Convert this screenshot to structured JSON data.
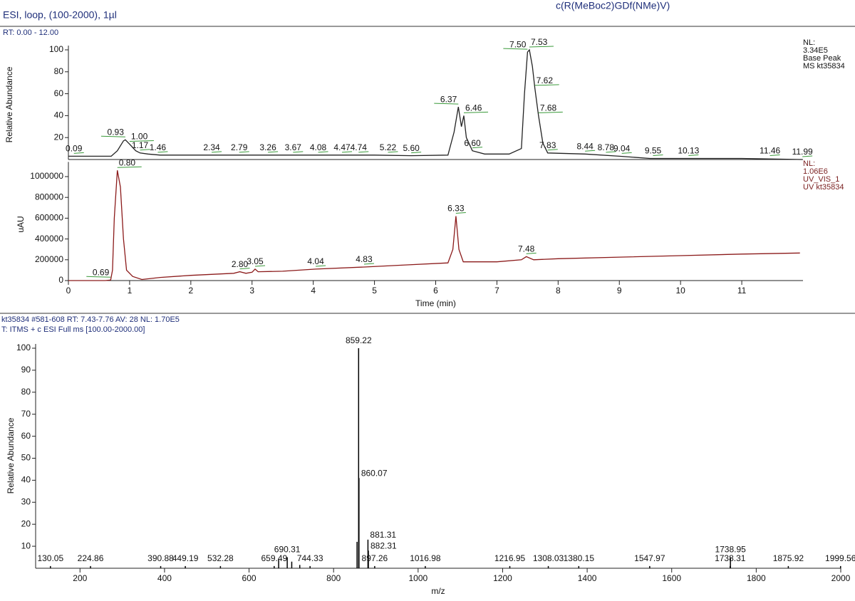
{
  "header": {
    "method": "ESI, loop, (100-2000), 1µl",
    "compound": "c(R(MeBoc2)GDf(NMe)V)",
    "rt_range": "RT: 0.00 - 12.00"
  },
  "chart_data": [
    {
      "type": "line",
      "ylabel": "Relative Abundance",
      "color": "#222222",
      "xlim": [
        0,
        12
      ],
      "ylim": [
        0,
        100
      ],
      "yticks": [
        20,
        40,
        60,
        80,
        100
      ],
      "info": [
        "NL:",
        "3.34E5",
        "Base Peak",
        "MS kt35834"
      ],
      "x": [
        0,
        0.7,
        0.8,
        0.9,
        0.93,
        1.0,
        1.1,
        1.17,
        1.3,
        1.5,
        2,
        3,
        4,
        5,
        5.6,
        6.2,
        6.3,
        6.37,
        6.42,
        6.46,
        6.5,
        6.6,
        6.8,
        7.2,
        7.4,
        7.45,
        7.5,
        7.53,
        7.58,
        7.62,
        7.68,
        7.75,
        7.83,
        8.44,
        9,
        9.5,
        10,
        11,
        11.99
      ],
      "values": [
        3,
        3,
        8,
        17,
        18,
        14,
        8,
        6,
        5,
        4,
        4,
        4,
        4,
        4,
        3.5,
        4,
        25,
        48,
        30,
        40,
        20,
        8,
        5,
        5,
        10,
        60,
        98,
        100,
        85,
        65,
        40,
        15,
        6,
        5,
        3,
        1,
        1,
        1,
        0
      ],
      "peaks": [
        {
          "x": 0.09,
          "y": 3,
          "label": "0.09"
        },
        {
          "x": 0.93,
          "y": 18,
          "label": "0.93"
        },
        {
          "x": 1.0,
          "y": 14,
          "label": "1.00"
        },
        {
          "x": 1.17,
          "y": 6,
          "label": "1.17"
        },
        {
          "x": 1.46,
          "y": 4,
          "label": "1.46"
        },
        {
          "x": 2.34,
          "y": 4,
          "label": "2.34"
        },
        {
          "x": 2.79,
          "y": 4,
          "label": "2.79"
        },
        {
          "x": 3.26,
          "y": 4,
          "label": "3.26"
        },
        {
          "x": 3.67,
          "y": 4,
          "label": "3.67"
        },
        {
          "x": 4.08,
          "y": 4,
          "label": "4.08"
        },
        {
          "x": 4.47,
          "y": 4,
          "label": "4.47"
        },
        {
          "x": 4.74,
          "y": 4,
          "label": "4.74"
        },
        {
          "x": 5.22,
          "y": 4,
          "label": "5.22"
        },
        {
          "x": 5.6,
          "y": 3.5,
          "label": "5.60"
        },
        {
          "x": 6.37,
          "y": 48,
          "label": "6.37"
        },
        {
          "x": 6.46,
          "y": 40,
          "label": "6.46"
        },
        {
          "x": 6.6,
          "y": 8,
          "label": "6.60"
        },
        {
          "x": 7.5,
          "y": 98,
          "label": "7.50"
        },
        {
          "x": 7.53,
          "y": 100,
          "label": "7.53"
        },
        {
          "x": 7.62,
          "y": 65,
          "label": "7.62"
        },
        {
          "x": 7.68,
          "y": 40,
          "label": "7.68"
        },
        {
          "x": 7.83,
          "y": 6,
          "label": "7.83"
        },
        {
          "x": 8.44,
          "y": 5,
          "label": "8.44"
        },
        {
          "x": 8.78,
          "y": 4,
          "label": "8.78"
        },
        {
          "x": 9.04,
          "y": 3,
          "label": "9.04"
        },
        {
          "x": 9.55,
          "y": 1,
          "label": "9.55"
        },
        {
          "x": 10.13,
          "y": 1,
          "label": "10.13"
        },
        {
          "x": 11.46,
          "y": 1,
          "label": "11.46"
        },
        {
          "x": 11.99,
          "y": 0,
          "label": "11.99"
        }
      ]
    },
    {
      "type": "line",
      "ylabel": "uAU",
      "xlabel": "Time (min)",
      "color": "#8b1a1a",
      "xlim": [
        0,
        12
      ],
      "ylim": [
        0,
        1100000
      ],
      "xticks": [
        0,
        1,
        2,
        3,
        4,
        5,
        6,
        7,
        8,
        9,
        10,
        11
      ],
      "yticks": [
        0,
        200000,
        400000,
        600000,
        800000,
        1000000
      ],
      "info": [
        "NL:",
        "1.06E6",
        "UV_VIS_1",
        "UV kt35834"
      ],
      "x": [
        0,
        0.6,
        0.69,
        0.72,
        0.75,
        0.8,
        0.85,
        0.9,
        0.95,
        1.05,
        1.2,
        1.5,
        2,
        2.7,
        2.8,
        2.9,
        3.0,
        3.05,
        3.1,
        3.5,
        4.04,
        4.83,
        5.5,
        6.2,
        6.28,
        6.33,
        6.38,
        6.45,
        7,
        7.4,
        7.48,
        7.6,
        8,
        9,
        10,
        11,
        11.95
      ],
      "values": [
        0,
        0,
        5000,
        100000,
        600000,
        1060000,
        900000,
        400000,
        100000,
        40000,
        10000,
        30000,
        50000,
        70000,
        85000,
        70000,
        80000,
        110000,
        85000,
        90000,
        110000,
        130000,
        150000,
        170000,
        300000,
        620000,
        300000,
        180000,
        180000,
        200000,
        230000,
        200000,
        210000,
        225000,
        240000,
        255000,
        265000
      ],
      "peaks": [
        {
          "x": 0.69,
          "y": 5000,
          "label": "0.69"
        },
        {
          "x": 0.8,
          "y": 1060000,
          "label": "0.80"
        },
        {
          "x": 2.8,
          "y": 85000,
          "label": "2.80"
        },
        {
          "x": 3.05,
          "y": 110000,
          "label": "3.05"
        },
        {
          "x": 4.04,
          "y": 110000,
          "label": "4.04"
        },
        {
          "x": 4.83,
          "y": 130000,
          "label": "4.83"
        },
        {
          "x": 6.33,
          "y": 620000,
          "label": "6.33"
        },
        {
          "x": 7.48,
          "y": 230000,
          "label": "7.48"
        }
      ]
    },
    {
      "type": "stick",
      "scan_info": "kt35834 #581-608  RT: 7.43-7.76  AV: 28  NL: 1.70E5",
      "filter": "T: ITMS + c ESI Full ms [100.00-2000.00]",
      "xlabel": "m/z",
      "ylabel": "Relative Abundance",
      "color": "#000000",
      "xlim": [
        95,
        2000
      ],
      "ylim": [
        0,
        100
      ],
      "xticks": [
        200,
        400,
        600,
        800,
        1000,
        1200,
        1400,
        1600,
        1800,
        2000
      ],
      "yticks": [
        10,
        20,
        30,
        40,
        50,
        60,
        70,
        80,
        90,
        100
      ],
      "peaks": [
        {
          "x": 130.05,
          "y": 1,
          "label": "130.05"
        },
        {
          "x": 224.86,
          "y": 1,
          "label": "224.86"
        },
        {
          "x": 390.88,
          "y": 1,
          "label": "390.88"
        },
        {
          "x": 449.19,
          "y": 1,
          "label": "449.19"
        },
        {
          "x": 532.28,
          "y": 1,
          "label": "532.28"
        },
        {
          "x": 659.49,
          "y": 1,
          "label": "659.49"
        },
        {
          "x": 670,
          "y": 4,
          "label": null
        },
        {
          "x": 690.31,
          "y": 5,
          "label": "690.31"
        },
        {
          "x": 701,
          "y": 3,
          "label": null
        },
        {
          "x": 720,
          "y": 1.5,
          "label": null
        },
        {
          "x": 744.33,
          "y": 1,
          "label": "744.33"
        },
        {
          "x": 855.5,
          "y": 12,
          "label": null
        },
        {
          "x": 859.22,
          "y": 100,
          "label": "859.22"
        },
        {
          "x": 860.07,
          "y": 41,
          "label": "860.07"
        },
        {
          "x": 881.31,
          "y": 13,
          "label": "881.31"
        },
        {
          "x": 882.31,
          "y": 8,
          "label": "882.31"
        },
        {
          "x": 897.26,
          "y": 1,
          "label": "897.26"
        },
        {
          "x": 1016.98,
          "y": 1,
          "label": "1016.98"
        },
        {
          "x": 1216.95,
          "y": 1,
          "label": "1216.95"
        },
        {
          "x": 1308.03,
          "y": 1,
          "label": "1308.03"
        },
        {
          "x": 1380.15,
          "y": 1,
          "label": "1380.15"
        },
        {
          "x": 1547.97,
          "y": 1,
          "label": "1547.97"
        },
        {
          "x": 1738.31,
          "y": 1,
          "label": "1738.31"
        },
        {
          "x": 1738.95,
          "y": 5,
          "label": "1738.95"
        },
        {
          "x": 1875.92,
          "y": 1,
          "label": "1875.92"
        },
        {
          "x": 1999.56,
          "y": 1,
          "label": "1999.56"
        }
      ]
    }
  ]
}
